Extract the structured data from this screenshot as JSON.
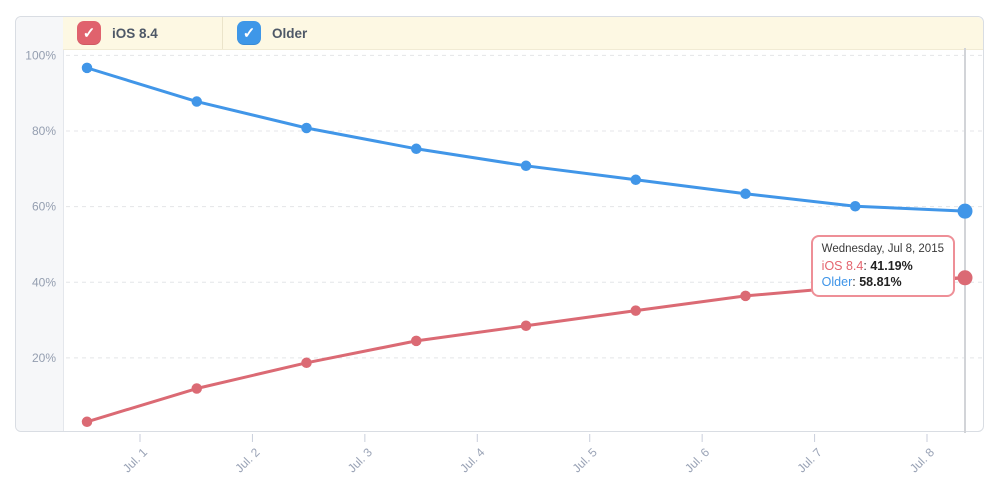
{
  "legend": {
    "items": [
      {
        "label": "iOS 8.4",
        "checked": true,
        "checkbox_color": "#e0626d"
      },
      {
        "label": "Older",
        "checked": true,
        "checkbox_color": "#3e97e8"
      }
    ]
  },
  "chart_data": {
    "type": "line",
    "title": "",
    "x_tick_labels": [
      "Jul. 1",
      "Jul. 2",
      "Jul. 3",
      "Jul. 4",
      "Jul. 5",
      "Jul. 6",
      "Jul. 7",
      "Jul. 8"
    ],
    "y_tick_labels": [
      "100%",
      "80%",
      "60%",
      "40%",
      "20%"
    ],
    "y_tick_values": [
      100,
      80,
      60,
      40,
      20
    ],
    "ylim": [
      0,
      100
    ],
    "grid": "horizontal-dashed",
    "legend_position": "top",
    "series": [
      {
        "name": "Older",
        "color": "#4196e8",
        "values": [
          96.7,
          87.8,
          80.8,
          75.3,
          70.8,
          67.1,
          63.4,
          60.1,
          58.81
        ]
      },
      {
        "name": "iOS 8.4",
        "color": "#db6a74",
        "values": [
          3.1,
          11.9,
          18.7,
          24.5,
          28.5,
          32.5,
          36.4,
          38.9,
          41.19
        ]
      }
    ],
    "highlighted_index": 8
  },
  "tooltip": {
    "title": "Wednesday, Jul 8, 2015",
    "rows": [
      {
        "name": "iOS 8.4",
        "separator": ": ",
        "value": "41.19%",
        "name_color": "#e4646e"
      },
      {
        "name": "Older",
        "separator": ": ",
        "value": "58.81%",
        "name_color": "#3e94e8"
      }
    ]
  }
}
